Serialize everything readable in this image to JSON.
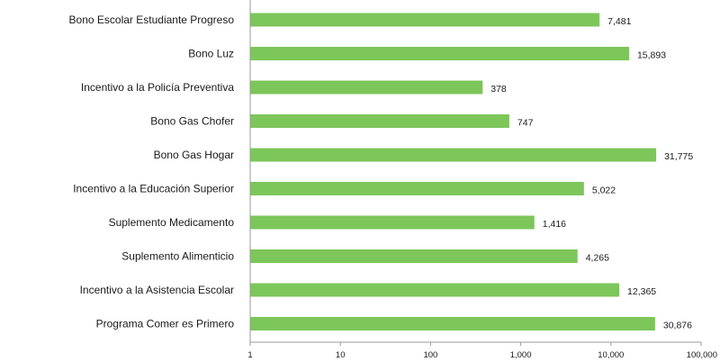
{
  "chart_data": {
    "type": "bar",
    "orientation": "horizontal",
    "scale": "log",
    "bar_color": "#7cc65a",
    "axis_color": "#9a9a9a",
    "categories": [
      "Bono Escolar Estudiante Progreso",
      "Bono Luz",
      "Incentivo a la Policía Preventiva",
      "Bono Gas Chofer",
      "Bono Gas Hogar",
      "Incentivo a la Educación Superior",
      "Suplemento Medicamento",
      "Suplemento Alimenticio",
      "Incentivo a la Asistencia Escolar",
      "Programa Comer es Primero"
    ],
    "values": [
      7481,
      15893,
      378,
      747,
      31775,
      5022,
      1416,
      4265,
      12365,
      30876
    ],
    "value_labels": [
      "7,481",
      "15,893",
      "378",
      "747",
      "31,775",
      "5,022",
      "1,416",
      "4,265",
      "12,365",
      "30,876"
    ],
    "xlim": [
      1,
      100000
    ],
    "x_ticks": [
      1,
      10,
      100,
      1000,
      10000,
      100000
    ],
    "x_tick_labels": [
      "1",
      "10",
      "100",
      "1,000",
      "10,000",
      "100,000"
    ],
    "title": "",
    "xlabel": "",
    "ylabel": ""
  }
}
